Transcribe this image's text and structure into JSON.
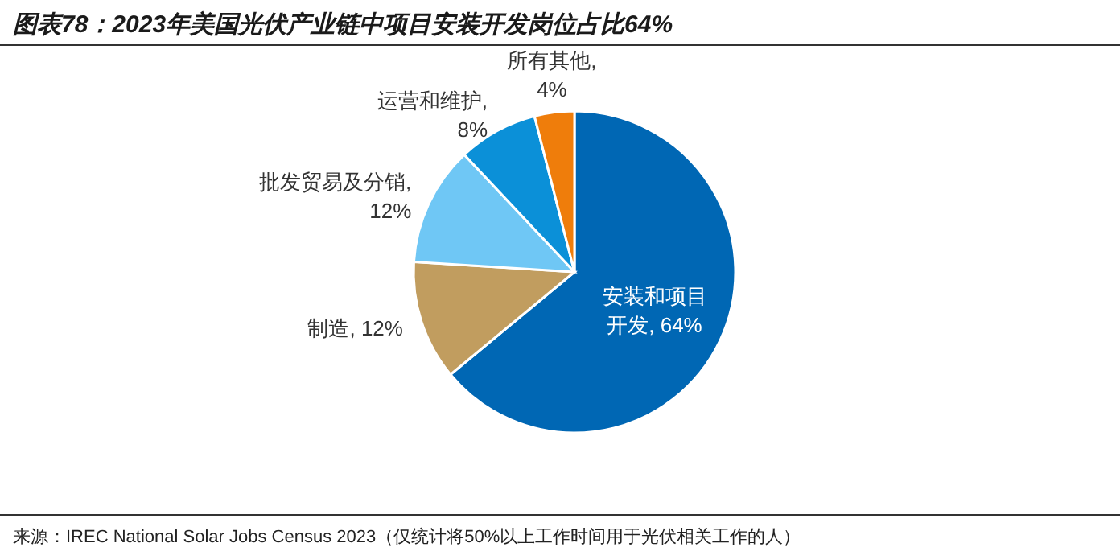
{
  "chart_data": {
    "type": "pie",
    "title": "图表78：2023年美国光伏产业链中项目安装开发岗位占比64%",
    "categories": [
      "安装和项目开发",
      "制造",
      "批发贸易及分销",
      "运营和维护",
      "所有其他"
    ],
    "values": [
      64,
      12,
      12,
      8,
      4
    ],
    "colors": [
      "#0067b4",
      "#c19d5f",
      "#6fc7f5",
      "#0b90d8",
      "#ef7d0b"
    ],
    "value_labels": [
      ", 64%",
      ", 12%",
      ", 12%",
      ", 8%",
      ", 4%"
    ],
    "annotations": [
      "来源：IREC National Solar Jobs Census 2023（仅统计将50%以上工作时间用于光伏相关工作的人）"
    ]
  }
}
